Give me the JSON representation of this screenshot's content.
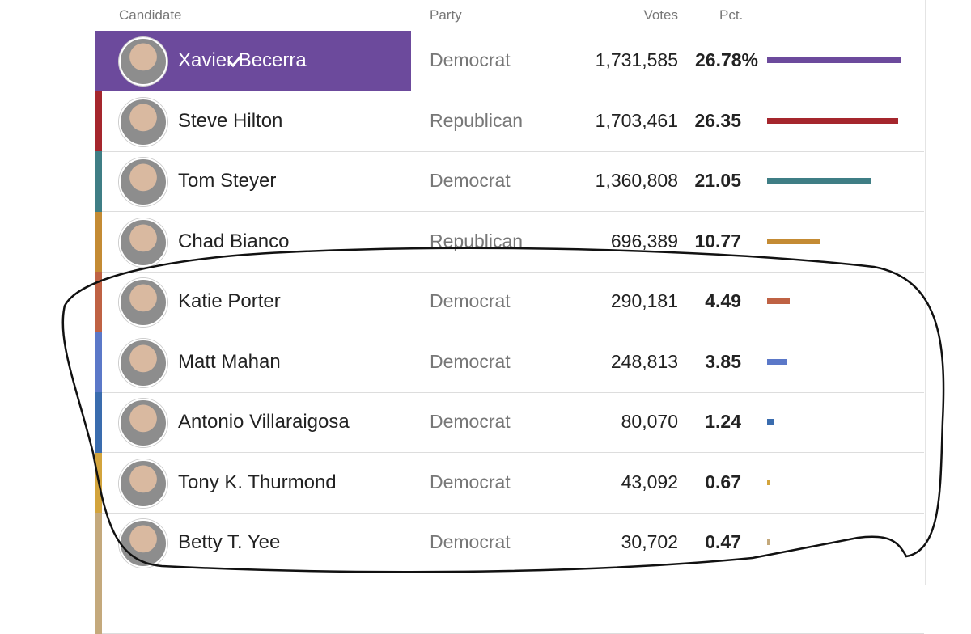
{
  "table": {
    "header": [
      "Candidate",
      "Party",
      "Votes",
      "Pct."
    ],
    "rows": [
      {
        "name": "Xavier Becerra",
        "party": "Democrat",
        "votes": "1,731,585",
        "pct": "26.78%",
        "color": "#6c4a9c",
        "winner": true
      },
      {
        "name": "Steve Hilton",
        "party": "Republican",
        "votes": "1,703,461",
        "pct": "26.35",
        "color": "#a5262d"
      },
      {
        "name": "Tom Steyer",
        "party": "Democrat",
        "votes": "1,360,808",
        "pct": "21.05",
        "color": "#3f7e85"
      },
      {
        "name": "Chad Bianco",
        "party": "Republican",
        "votes": "696,389",
        "pct": "10.77",
        "color": "#c48b34"
      },
      {
        "name": "Katie Porter",
        "party": "Democrat",
        "votes": "290,181",
        "pct": "4.49",
        "color": "#bf6244"
      },
      {
        "name": "Matt Mahan",
        "party": "Democrat",
        "votes": "248,813",
        "pct": "3.85",
        "color": "#5b78c8"
      },
      {
        "name": "Antonio Villaraigosa",
        "party": "Democrat",
        "votes": "80,070",
        "pct": "1.24",
        "color": "#3a6cae"
      },
      {
        "name": "Tony K. Thurmond",
        "party": "Democrat",
        "votes": "43,092",
        "pct": "0.67",
        "color": "#d3a43c"
      },
      {
        "name": "Betty T. Yee",
        "party": "Democrat",
        "votes": "30,702",
        "pct": "0.47",
        "color": "#c4a97c"
      }
    ]
  }
}
